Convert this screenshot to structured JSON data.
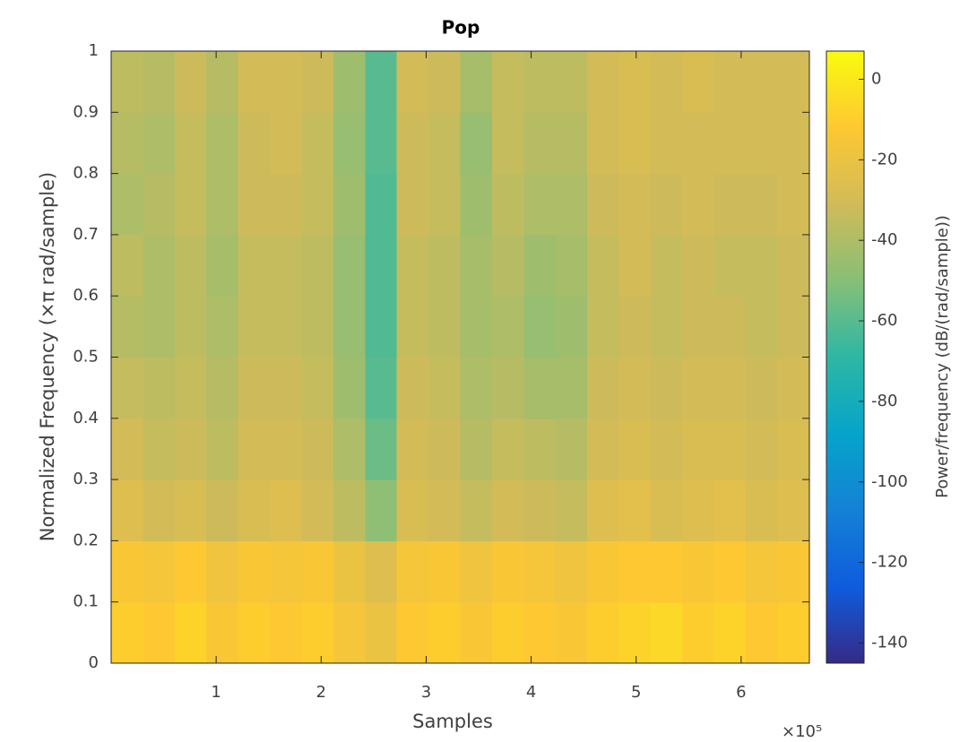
{
  "chart_data": {
    "type": "heatmap",
    "title": "Pop",
    "x_label": "Samples",
    "y_label": "Normalized Frequency  (×π rad/sample)",
    "x_exponent_label": "×10⁵",
    "colorbar_label": "Power/frequency (dB/(rad/sample))",
    "xlim": [
      0,
      665000
    ],
    "xticks": [
      {
        "value": 100000,
        "label": "1"
      },
      {
        "value": 200000,
        "label": "2"
      },
      {
        "value": 300000,
        "label": "3"
      },
      {
        "value": 400000,
        "label": "4"
      },
      {
        "value": 500000,
        "label": "5"
      },
      {
        "value": 600000,
        "label": "6"
      }
    ],
    "ylim": [
      0,
      1
    ],
    "yticks": [
      0,
      0.1,
      0.2,
      0.3,
      0.4,
      0.5,
      0.6,
      0.7,
      0.8,
      0.9,
      1
    ],
    "clim": [
      -145,
      7
    ],
    "cticks": [
      0,
      -20,
      -40,
      -60,
      -80,
      -100,
      -120,
      -140
    ],
    "colormap": [
      "#352a87",
      "#0f5cdd",
      "#1481d6",
      "#06a4ca",
      "#2eb7a4",
      "#87bf77",
      "#d1bb59",
      "#fec832",
      "#f9fb0e"
    ],
    "z": [
      [
        -10,
        -12,
        -8,
        -14,
        -10,
        -12,
        -10,
        -16,
        -20,
        -12,
        -10,
        -14,
        -10,
        -12,
        -14,
        -10,
        -8,
        -6,
        -10,
        -8,
        -12,
        -10
      ],
      [
        -14,
        -16,
        -12,
        -18,
        -14,
        -16,
        -14,
        -20,
        -26,
        -16,
        -14,
        -18,
        -14,
        -16,
        -18,
        -14,
        -12,
        -12,
        -14,
        -12,
        -16,
        -14
      ],
      [
        -26,
        -30,
        -28,
        -32,
        -28,
        -26,
        -30,
        -36,
        -48,
        -28,
        -30,
        -34,
        -30,
        -32,
        -34,
        -26,
        -24,
        -28,
        -26,
        -24,
        -28,
        -26
      ],
      [
        -30,
        -34,
        -32,
        -36,
        -30,
        -30,
        -32,
        -40,
        -56,
        -30,
        -32,
        -38,
        -34,
        -36,
        -38,
        -30,
        -28,
        -30,
        -28,
        -28,
        -30,
        -28
      ],
      [
        -34,
        -36,
        -34,
        -38,
        -32,
        -32,
        -34,
        -44,
        -60,
        -32,
        -34,
        -40,
        -38,
        -42,
        -42,
        -32,
        -30,
        -32,
        -30,
        -30,
        -32,
        -30
      ],
      [
        -38,
        -40,
        -36,
        -40,
        -34,
        -34,
        -36,
        -46,
        -62,
        -34,
        -36,
        -42,
        -40,
        -46,
        -44,
        -34,
        -32,
        -34,
        -32,
        -32,
        -34,
        -32
      ],
      [
        -36,
        -40,
        -36,
        -42,
        -34,
        -34,
        -36,
        -46,
        -62,
        -34,
        -36,
        -42,
        -38,
        -44,
        -42,
        -34,
        -30,
        -34,
        -32,
        -34,
        -34,
        -32
      ],
      [
        -40,
        -38,
        -34,
        -40,
        -32,
        -32,
        -34,
        -44,
        -62,
        -32,
        -34,
        -44,
        -36,
        -40,
        -40,
        -32,
        -30,
        -32,
        -30,
        -32,
        -32,
        -30
      ],
      [
        -38,
        -40,
        -34,
        -40,
        -32,
        -30,
        -34,
        -46,
        -60,
        -32,
        -34,
        -46,
        -34,
        -38,
        -38,
        -30,
        -28,
        -30,
        -30,
        -30,
        -30,
        -30
      ],
      [
        -36,
        -38,
        -32,
        -38,
        -30,
        -30,
        -32,
        -44,
        -60,
        -30,
        -32,
        -42,
        -34,
        -36,
        -36,
        -30,
        -28,
        -30,
        -28,
        -30,
        -30,
        -30
      ]
    ]
  }
}
